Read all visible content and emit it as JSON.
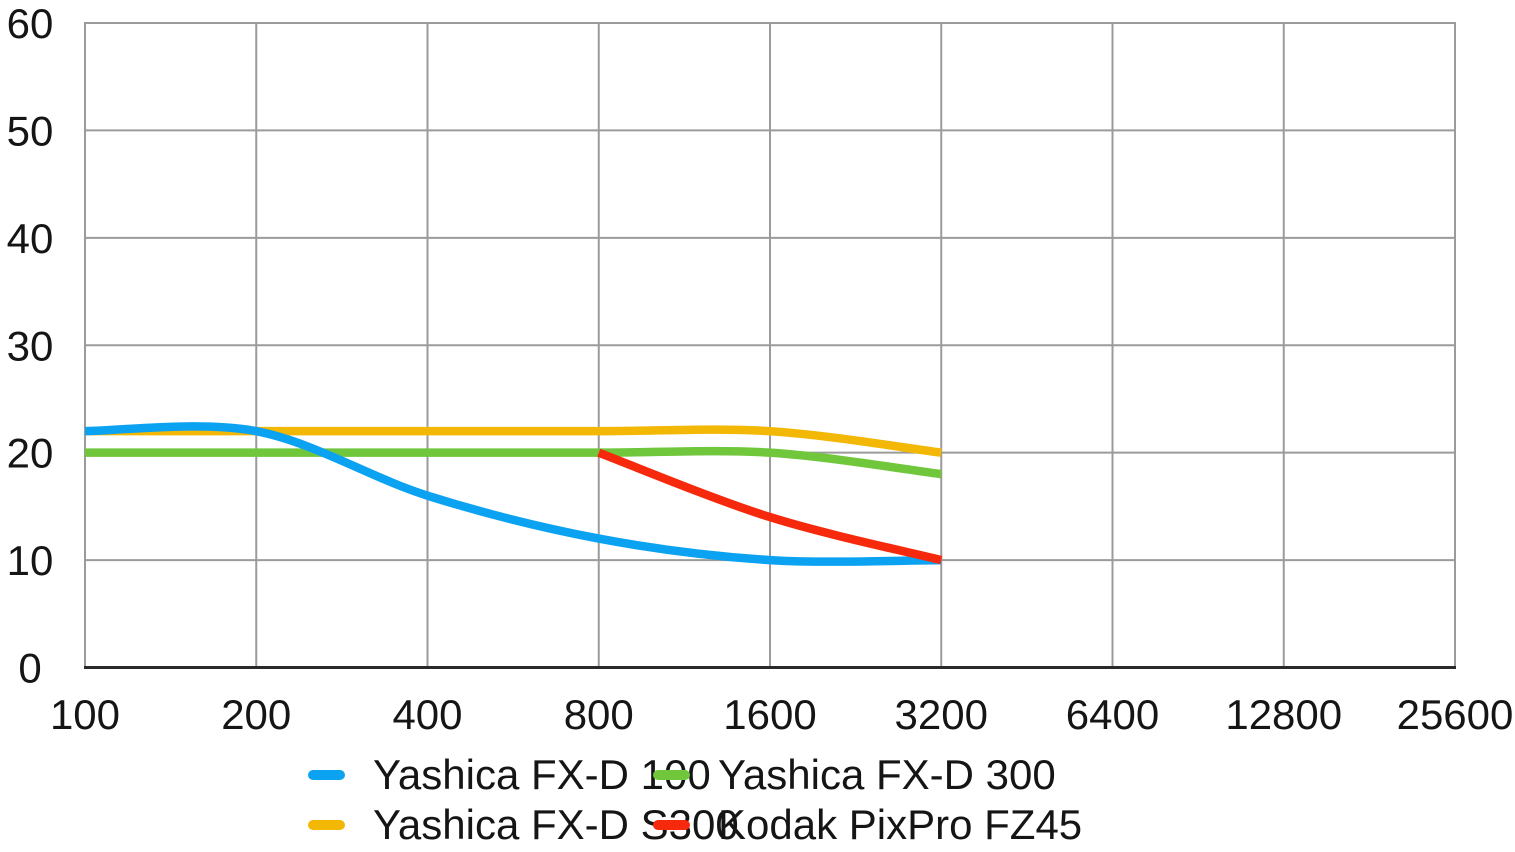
{
  "chart_data": {
    "type": "line",
    "title": "",
    "xlabel": "",
    "ylabel": "",
    "x_scale": "log2-categorical",
    "categories": [
      "100",
      "200",
      "400",
      "800",
      "1600",
      "3200",
      "6400",
      "12800",
      "25600"
    ],
    "series": [
      {
        "name": "Yashica FX-D 100",
        "color": "#0CA2F2",
        "values": [
          22,
          22,
          16,
          12,
          10,
          10,
          null,
          null,
          null
        ]
      },
      {
        "name": "Yashica FX-D 300",
        "color": "#70C73C",
        "values": [
          20,
          20,
          20,
          20,
          20,
          18,
          null,
          null,
          null
        ]
      },
      {
        "name": "Yashica FX-D S300",
        "color": "#F3B705",
        "values": [
          22,
          22,
          22,
          22,
          22,
          20,
          null,
          null,
          null
        ]
      },
      {
        "name": "Kodak PixPro FZ45",
        "color": "#F6290C",
        "values": [
          null,
          null,
          null,
          20,
          14,
          10,
          null,
          null,
          null
        ]
      }
    ],
    "ylim": [
      0,
      60
    ],
    "y_ticks": [
      0,
      10,
      20,
      30,
      40,
      50,
      60
    ],
    "grid": true,
    "legend_position": "bottom"
  },
  "style": {
    "grid_color": "#9B9B9B",
    "axis_color": "#2A2A2C",
    "text_color": "#151515",
    "background_color": "#FFFFFF"
  }
}
